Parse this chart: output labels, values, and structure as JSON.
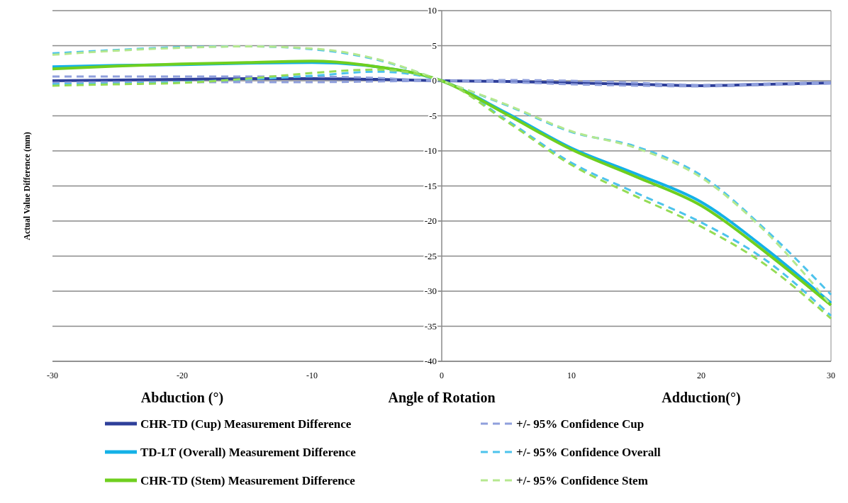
{
  "chart_data": {
    "type": "line",
    "xlabel": "Angle of Rotation",
    "ylabel": "Actual Value Difference  (mm)",
    "annotations": [
      "Abduction (°)",
      "Adduction(°)"
    ],
    "x": [
      -30,
      -25,
      -20,
      -15,
      -10,
      -5,
      0,
      5,
      10,
      15,
      20,
      25,
      30
    ],
    "series": [
      {
        "name": "CHR-TD (Cup) Measurement Difference",
        "color": "#2e3f9a",
        "values": [
          0.0,
          0.1,
          0.2,
          0.3,
          0.3,
          0.2,
          0.0,
          -0.1,
          -0.3,
          -0.5,
          -0.7,
          -0.5,
          -0.3
        ]
      },
      {
        "name": "+/- 95% Confidence Cup",
        "color": "#8f9fdc",
        "line_style": "dashed",
        "values": [
          0.6,
          0.6,
          0.6,
          0.6,
          0.6,
          0.4,
          0.0,
          0.1,
          0.0,
          -0.3,
          -0.6,
          -0.4,
          -0.2
        ]
      },
      {
        "color": "#8f9fdc",
        "line_style": "dashed",
        "values": [
          -0.3,
          -0.2,
          -0.2,
          -0.2,
          -0.2,
          -0.1,
          0.0,
          -0.2,
          -0.5,
          -0.7,
          -0.8,
          -0.6,
          -0.4
        ]
      },
      {
        "name": "TD-LT (Overall)  Measurement Difference",
        "color": "#14b1e7",
        "values": [
          2.0,
          2.2,
          2.3,
          2.5,
          2.6,
          2.0,
          0.0,
          -4.6,
          -9.6,
          -13.3,
          -17.3,
          -24.0,
          -31.7
        ]
      },
      {
        "name": "+/- 95% Confidence Overall",
        "color": "#4dc3ec",
        "line_style": "dashed",
        "values": [
          3.9,
          4.4,
          4.8,
          4.9,
          4.5,
          3.0,
          0.0,
          -3.5,
          -7.3,
          -9.4,
          -13.5,
          -21.3,
          -30.5
        ]
      },
      {
        "color": "#4dc3ec",
        "line_style": "dashed",
        "values": [
          -0.5,
          -0.4,
          -0.2,
          0.2,
          0.7,
          1.3,
          0.0,
          -5.6,
          -11.7,
          -16.0,
          -20.2,
          -25.6,
          -33.5
        ]
      },
      {
        "name": "CHR-TD (Stem) Measurement Difference",
        "color": "#6fcf1f",
        "values": [
          1.7,
          2.1,
          2.4,
          2.6,
          2.8,
          2.0,
          0.0,
          -4.8,
          -9.8,
          -13.7,
          -17.8,
          -24.5,
          -32.0
        ]
      },
      {
        "name": "+/- 95% Confidence Stem",
        "color": "#b5e88f",
        "line_style": "dashed",
        "values": [
          3.7,
          4.3,
          4.7,
          4.9,
          4.6,
          3.1,
          0.0,
          -3.4,
          -7.2,
          -9.6,
          -13.8,
          -21.6,
          -32.0
        ]
      },
      {
        "color": "#94dc55",
        "line_style": "dashed",
        "values": [
          -0.7,
          -0.5,
          -0.3,
          0.3,
          1.1,
          1.6,
          0.0,
          -5.8,
          -12.0,
          -16.5,
          -20.8,
          -26.3,
          -33.9
        ]
      }
    ],
    "xlim": [
      -30,
      30
    ],
    "xticks": [
      -30,
      -20,
      -10,
      0,
      10,
      20,
      30
    ],
    "ylim": [
      -40,
      10
    ],
    "yticks": [
      -40,
      -35,
      -30,
      -25,
      -20,
      -15,
      -10,
      -5,
      0,
      5,
      10
    ],
    "grid": "y",
    "legend": "bottom",
    "marker": "none"
  }
}
